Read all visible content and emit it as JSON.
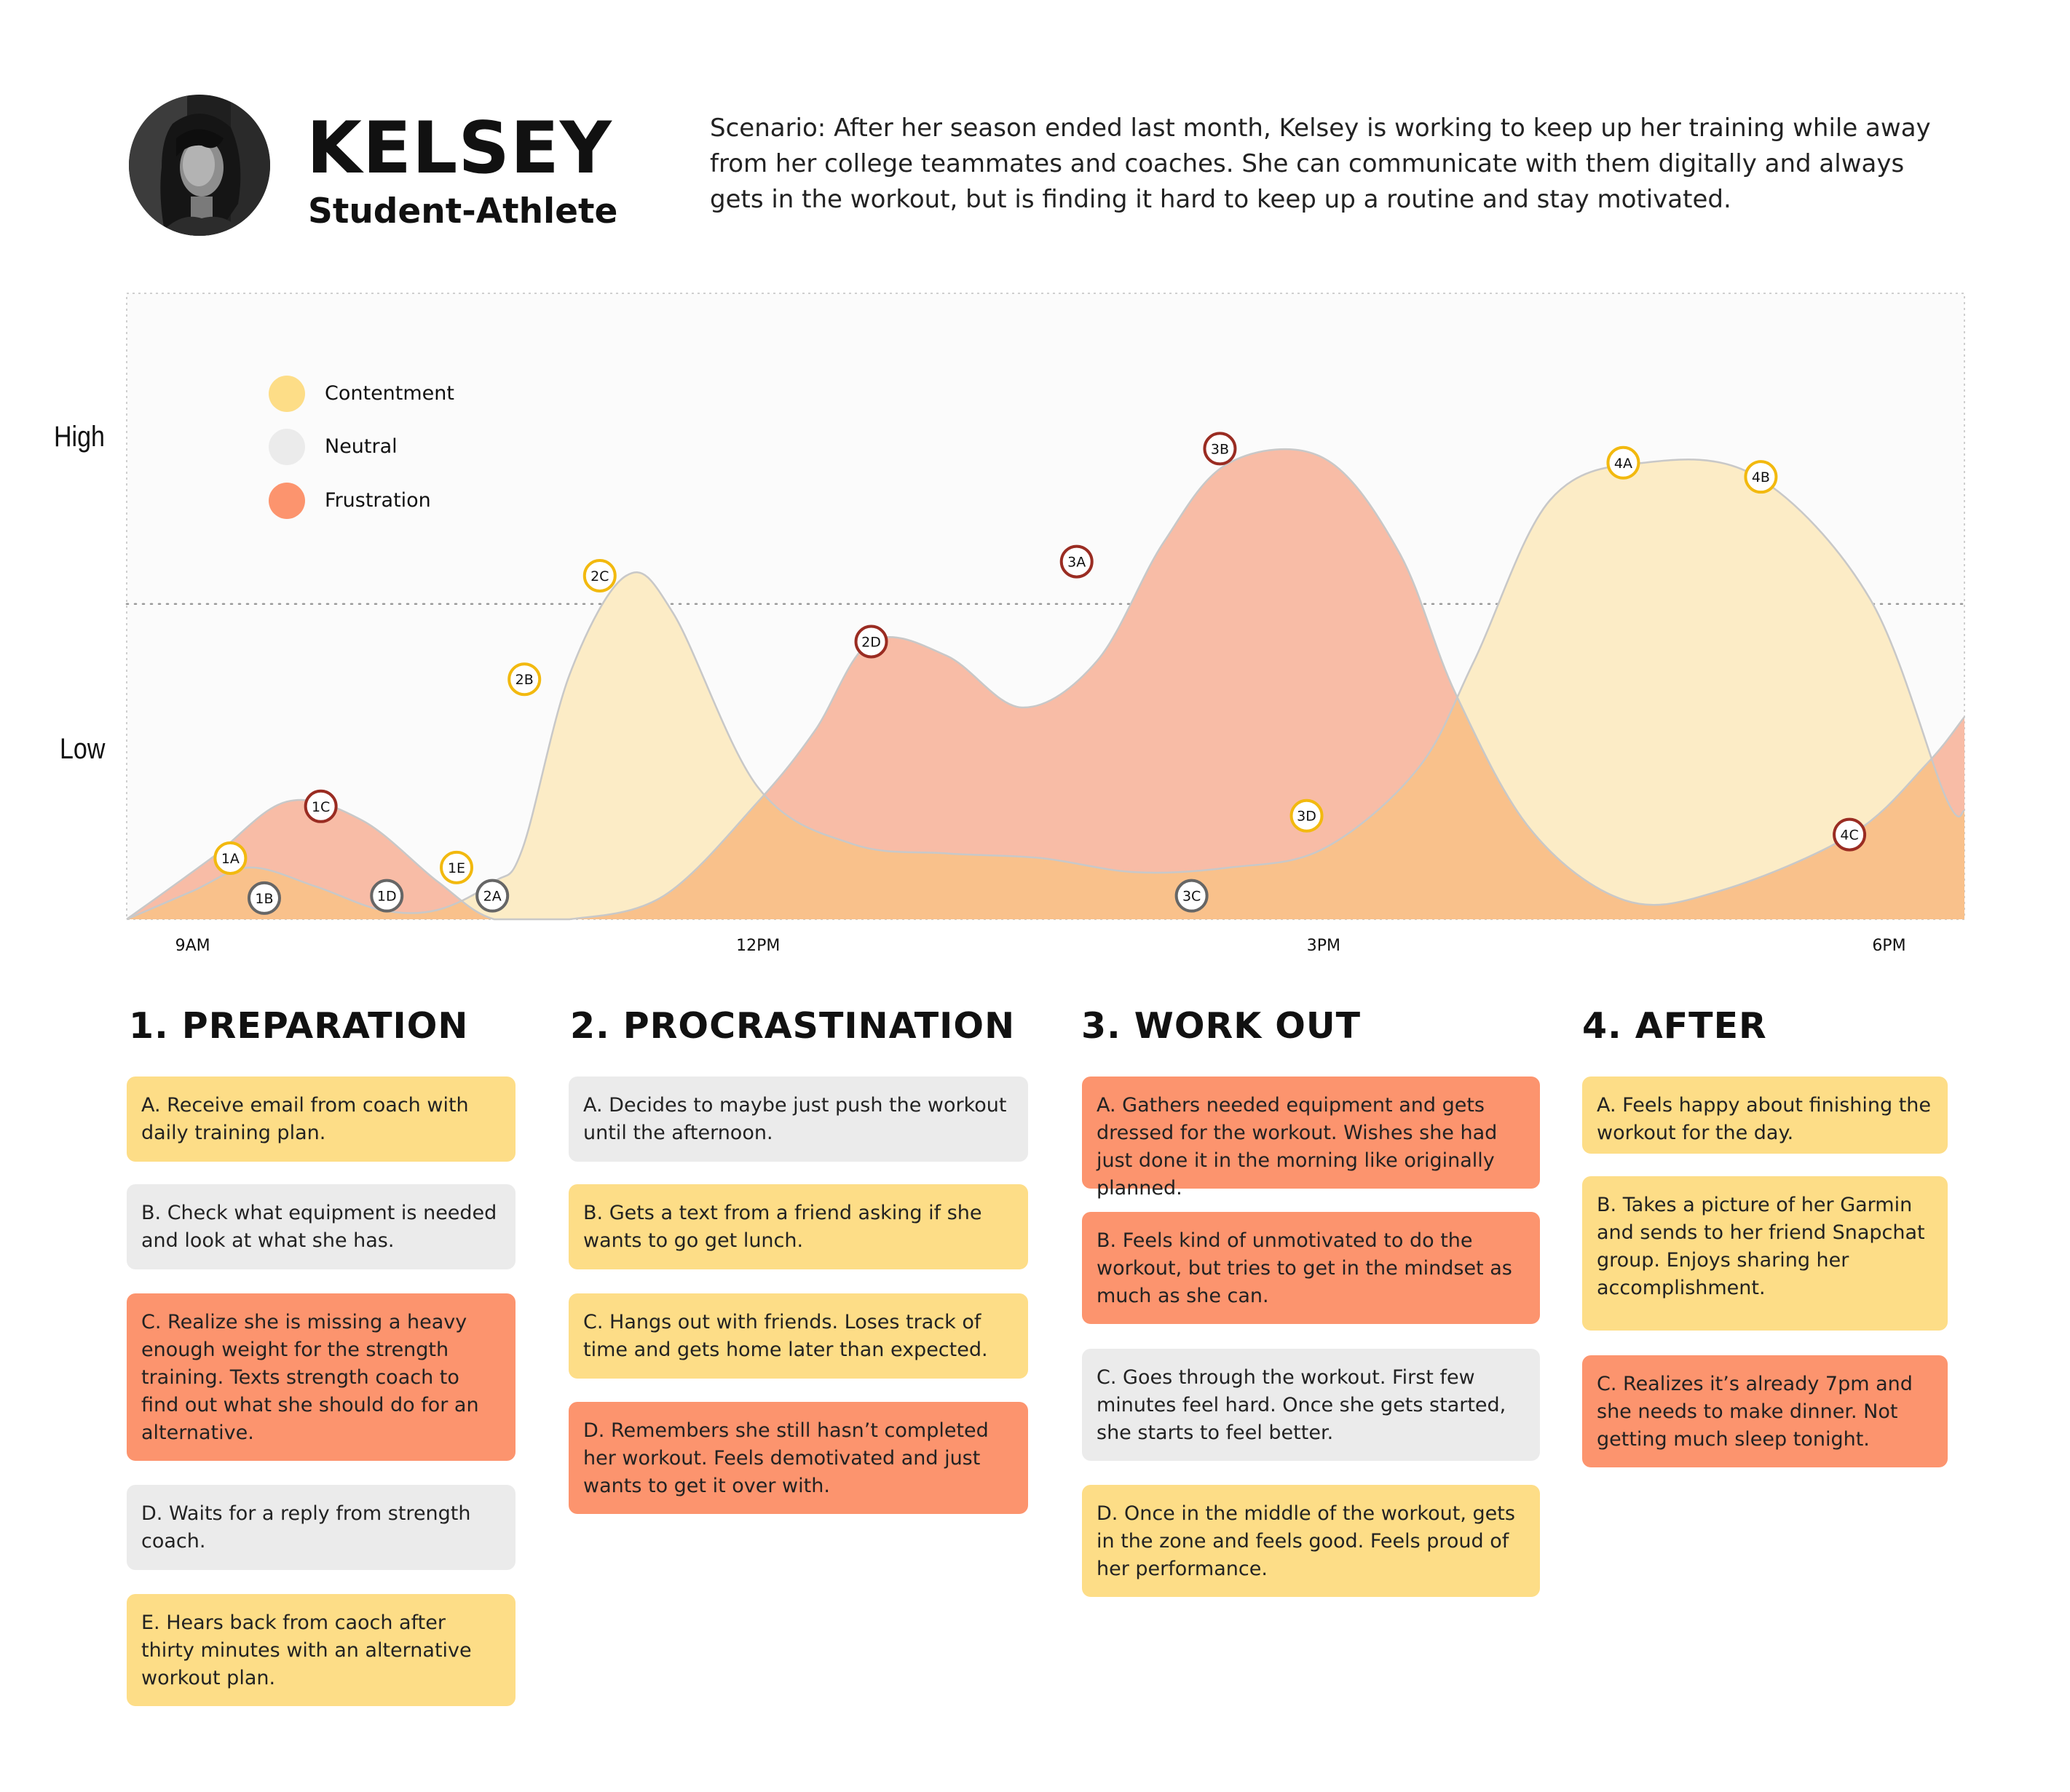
{
  "persona": {
    "name": "KELSEY",
    "role": "Student-Athlete",
    "scenario": "Scenario: After her season ended last month, Kelsey is working to keep up her training while away from her college teammates and coaches. She can communicate with them digitally and always gets in the workout, but is finding it hard to keep up a routine and stay motivated."
  },
  "colors": {
    "contentment": "#fddd87",
    "neutral": "#ebebeb",
    "frustration": "#fc946e",
    "contentment_area": "#fcecc6",
    "frustration_area": "#f8bca6",
    "overlap_area": "#f9c18b",
    "contentment_ring": "#f2b90f",
    "frustration_ring": "#9a2c22",
    "neutral_ring": "#666666"
  },
  "chart_data": {
    "type": "area",
    "x_axis": {
      "ticks": [
        {
          "label": "9AM",
          "hour": 9
        },
        {
          "label": "12PM",
          "hour": 12
        },
        {
          "label": "3PM",
          "hour": 15
        },
        {
          "label": "6PM",
          "hour": 18
        }
      ],
      "range": [
        8.65,
        18.4
      ]
    },
    "y_axis": {
      "labels": [
        {
          "label": "High",
          "level": 1.0
        },
        {
          "label": "Low",
          "level": 0.33
        }
      ],
      "reference_line_level": 0.67,
      "range": [
        0,
        1.33
      ]
    },
    "legend": {
      "placement": "top-left",
      "items": [
        {
          "label": "Contentment",
          "key": "contentment"
        },
        {
          "label": "Neutral",
          "key": "neutral"
        },
        {
          "label": "Frustration",
          "key": "frustration"
        }
      ]
    },
    "series": [
      {
        "name": "Contentment",
        "key": "contentment",
        "points": [
          [
            8.65,
            0
          ],
          [
            9.0,
            0.06
          ],
          [
            9.3,
            0.11
          ],
          [
            9.65,
            0.07
          ],
          [
            10.0,
            0.02
          ],
          [
            10.3,
            0.02
          ],
          [
            10.6,
            0.08
          ],
          [
            10.75,
            0.15
          ],
          [
            11.0,
            0.52
          ],
          [
            11.3,
            0.73
          ],
          [
            11.55,
            0.65
          ],
          [
            12.0,
            0.28
          ],
          [
            12.5,
            0.16
          ],
          [
            13.0,
            0.14
          ],
          [
            13.5,
            0.13
          ],
          [
            14.0,
            0.1
          ],
          [
            14.5,
            0.11
          ],
          [
            15.0,
            0.15
          ],
          [
            15.5,
            0.32
          ],
          [
            15.8,
            0.55
          ],
          [
            16.2,
            0.89
          ],
          [
            16.7,
            0.97
          ],
          [
            17.3,
            0.94
          ],
          [
            17.9,
            0.68
          ],
          [
            18.3,
            0.26
          ],
          [
            18.4,
            0.23
          ]
        ]
      },
      {
        "name": "Frustration",
        "key": "frustration",
        "points": [
          [
            8.65,
            0
          ],
          [
            9.1,
            0.13
          ],
          [
            9.5,
            0.25
          ],
          [
            9.9,
            0.21
          ],
          [
            10.3,
            0.08
          ],
          [
            10.6,
            0
          ],
          [
            11.0,
            0
          ],
          [
            11.5,
            0.05
          ],
          [
            12.0,
            0.25
          ],
          [
            12.3,
            0.4
          ],
          [
            12.6,
            0.59
          ],
          [
            13.0,
            0.56
          ],
          [
            13.4,
            0.45
          ],
          [
            13.8,
            0.55
          ],
          [
            14.15,
            0.8
          ],
          [
            14.5,
            0.97
          ],
          [
            15.0,
            0.98
          ],
          [
            15.4,
            0.78
          ],
          [
            15.7,
            0.48
          ],
          [
            16.1,
            0.19
          ],
          [
            16.6,
            0.04
          ],
          [
            17.1,
            0.06
          ],
          [
            17.8,
            0.18
          ],
          [
            18.2,
            0.33
          ],
          [
            18.4,
            0.43
          ]
        ]
      }
    ],
    "markers": [
      {
        "label": "1A",
        "hour": 9.2,
        "level": 0.13,
        "type": "contentment"
      },
      {
        "label": "1B",
        "hour": 9.38,
        "level": 0.045,
        "type": "neutral"
      },
      {
        "label": "1C",
        "hour": 9.68,
        "level": 0.24,
        "type": "frustration"
      },
      {
        "label": "1D",
        "hour": 10.03,
        "level": 0.05,
        "type": "neutral"
      },
      {
        "label": "1E",
        "hour": 10.4,
        "level": 0.11,
        "type": "contentment"
      },
      {
        "label": "2A",
        "hour": 10.59,
        "level": 0.05,
        "type": "neutral"
      },
      {
        "label": "2B",
        "hour": 10.76,
        "level": 0.51,
        "type": "contentment"
      },
      {
        "label": "2C",
        "hour": 11.16,
        "level": 0.73,
        "type": "contentment"
      },
      {
        "label": "2D",
        "hour": 12.6,
        "level": 0.59,
        "type": "frustration"
      },
      {
        "label": "3A",
        "hour": 13.69,
        "level": 0.76,
        "type": "frustration"
      },
      {
        "label": "3B",
        "hour": 14.45,
        "level": 1.0,
        "type": "frustration"
      },
      {
        "label": "3C",
        "hour": 14.3,
        "level": 0.05,
        "type": "neutral"
      },
      {
        "label": "3D",
        "hour": 14.91,
        "level": 0.22,
        "type": "contentment"
      },
      {
        "label": "4A",
        "hour": 16.59,
        "level": 0.97,
        "type": "contentment"
      },
      {
        "label": "4B",
        "hour": 17.32,
        "level": 0.94,
        "type": "contentment"
      },
      {
        "label": "4C",
        "hour": 17.79,
        "level": 0.18,
        "type": "frustration"
      }
    ]
  },
  "phases": [
    {
      "title": "1. PREPARATION",
      "cards": [
        {
          "text": "A. Receive email from coach with daily training plan.",
          "type": "contentment"
        },
        {
          "text": "B. Check what equipment is needed and look at what she has.",
          "type": "neutral"
        },
        {
          "text": "C. Realize she is missing a heavy enough weight for the strength training. Texts strength coach to find out what she should do for an alternative.",
          "type": "frustration"
        },
        {
          "text": "D. Waits for a reply from strength coach.",
          "type": "neutral"
        },
        {
          "text": "E. Hears back from caoch after thirty minutes with an alternative workout plan.",
          "type": "contentment"
        }
      ]
    },
    {
      "title": "2. PROCRASTINATION",
      "cards": [
        {
          "text": "A. Decides to maybe just push the workout until the afternoon.",
          "type": "neutral"
        },
        {
          "text": "B. Gets a text from a friend asking if she wants to go get lunch.",
          "type": "contentment"
        },
        {
          "text": "C. Hangs out with friends. Loses track of time and gets home later than expected.",
          "type": "contentment"
        },
        {
          "text": "D. Remembers she still hasn’t completed her workout. Feels demotivated and just wants to get it over with.",
          "type": "frustration"
        }
      ]
    },
    {
      "title": "3. WORK OUT",
      "cards": [
        {
          "text": "A. Gathers needed equipment and gets dressed for the workout. Wishes she had just done it in the morning like originally planned.",
          "type": "frustration"
        },
        {
          "text": "B. Feels kind of unmotivated to do the workout, but tries to get in the mindset as much as she can.",
          "type": "frustration"
        },
        {
          "text": "C. Goes through the workout. First few minutes feel hard. Once she gets started, she starts to feel better.",
          "type": "neutral"
        },
        {
          "text": "D. Once in the middle of the workout, gets in the zone and feels good. Feels proud of her performance.",
          "type": "contentment"
        }
      ]
    },
    {
      "title": "4. AFTER",
      "cards": [
        {
          "text": "A. Feels happy about finishing the workout for the day.",
          "type": "contentment"
        },
        {
          "text": "B. Takes a picture of her Garmin and sends to her friend Snapchat group. Enjoys sharing her accomplishment.",
          "type": "contentment"
        },
        {
          "text": "C. Realizes it’s already 7pm and she needs to make dinner. Not getting much sleep tonight.",
          "type": "frustration"
        }
      ]
    }
  ]
}
